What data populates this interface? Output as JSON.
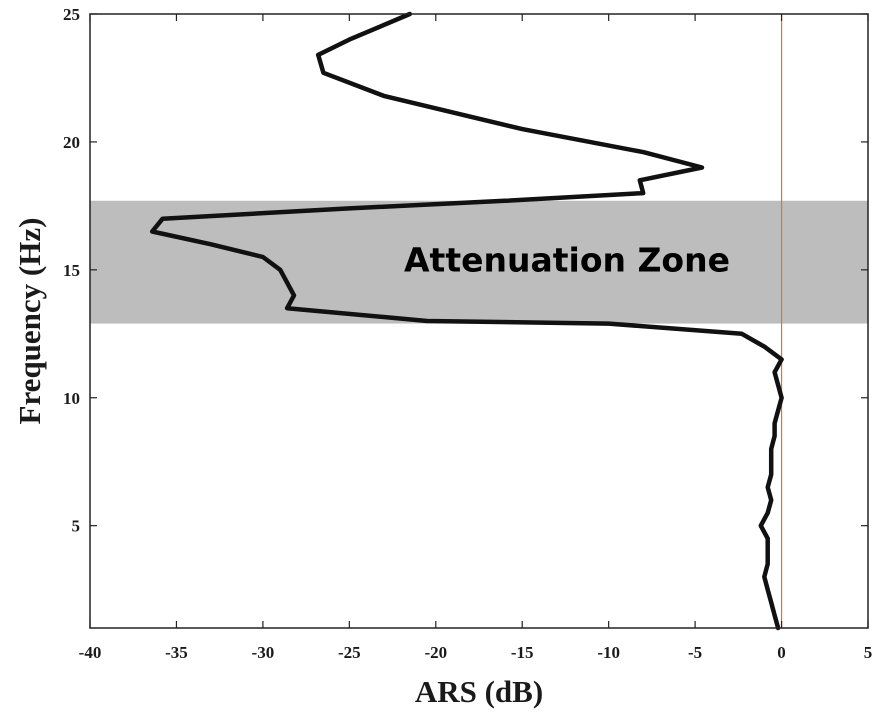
{
  "chart_data": {
    "type": "line",
    "title": "",
    "xlabel": "ARS (dB)",
    "ylabel": "Frequency (Hz)",
    "xlim": [
      -40,
      5
    ],
    "ylim": [
      1,
      25
    ],
    "x_ticks": [
      -40,
      -35,
      -30,
      -25,
      -20,
      -15,
      -10,
      -5,
      0,
      5
    ],
    "y_ticks": [
      5,
      10,
      15,
      20,
      25
    ],
    "grid": false,
    "legend": "none",
    "series": [
      {
        "color": "#111111",
        "points": [
          [
            -0.2,
            1.0
          ],
          [
            -0.4,
            1.5
          ],
          [
            -0.6,
            2.0
          ],
          [
            -0.8,
            2.5
          ],
          [
            -1.0,
            3.0
          ],
          [
            -0.8,
            3.5
          ],
          [
            -0.8,
            4.0
          ],
          [
            -0.8,
            4.5
          ],
          [
            -1.2,
            5.0
          ],
          [
            -0.8,
            5.5
          ],
          [
            -0.6,
            6.0
          ],
          [
            -0.8,
            6.5
          ],
          [
            -0.6,
            7.0
          ],
          [
            -0.6,
            7.5
          ],
          [
            -0.6,
            8.0
          ],
          [
            -0.4,
            8.5
          ],
          [
            -0.4,
            9.0
          ],
          [
            -0.2,
            9.5
          ],
          [
            0.0,
            10.0
          ],
          [
            -0.2,
            10.5
          ],
          [
            -0.4,
            11.0
          ],
          [
            0.0,
            11.5
          ],
          [
            -1.0,
            12.0
          ],
          [
            -2.3,
            12.5
          ],
          [
            -10.0,
            12.9
          ],
          [
            -20.5,
            13.0
          ],
          [
            -28.6,
            13.5
          ],
          [
            -28.2,
            14.0
          ],
          [
            -28.6,
            14.5
          ],
          [
            -29.0,
            15.0
          ],
          [
            -30.0,
            15.5
          ],
          [
            -33.0,
            16.0
          ],
          [
            -36.4,
            16.5
          ],
          [
            -35.8,
            17.0
          ],
          [
            -25.0,
            17.4
          ],
          [
            -16.0,
            17.7
          ],
          [
            -8.0,
            18.0
          ],
          [
            -8.2,
            18.5
          ],
          [
            -4.6,
            19.0
          ],
          [
            -8.0,
            19.6
          ],
          [
            -15.0,
            20.5
          ],
          [
            -23.0,
            21.8
          ],
          [
            -26.5,
            22.7
          ],
          [
            -26.8,
            23.4
          ],
          [
            -25.0,
            24.0
          ],
          [
            -21.5,
            25.0
          ]
        ]
      }
    ],
    "shaded_band": {
      "y_from": 12.9,
      "y_to": 17.7,
      "color": "#bdbdbd",
      "label": "Attenuation Zone"
    },
    "reference_line": {
      "x": 0,
      "color": "#d07a2a"
    }
  }
}
